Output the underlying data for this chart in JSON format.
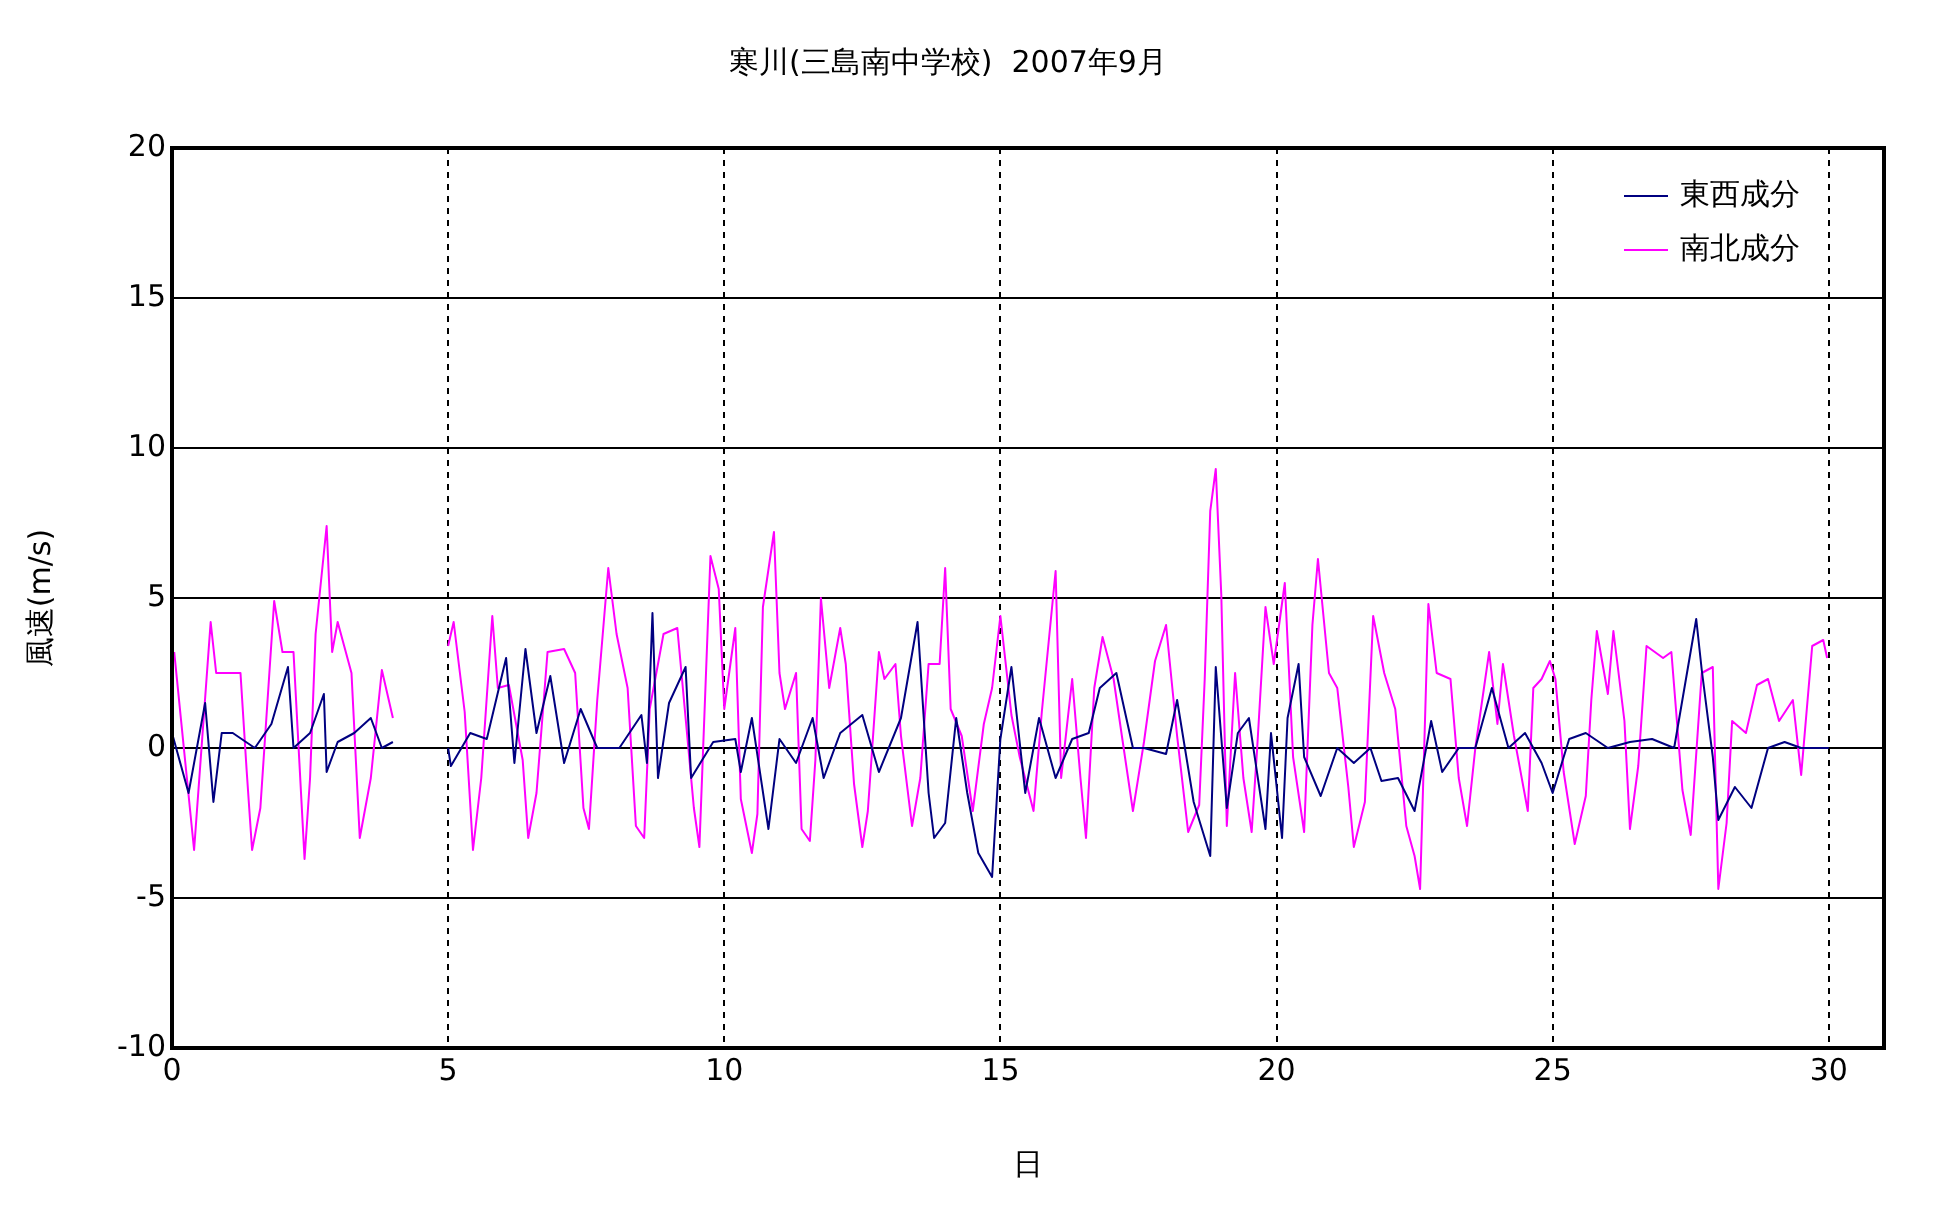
{
  "chart_data": {
    "type": "line",
    "title": "寒川(三島南中学校)  2007年9月",
    "xlabel": "日",
    "ylabel": "風速(m/s)",
    "xlim": [
      0,
      31
    ],
    "xticks": [
      0,
      5,
      10,
      15,
      20,
      25,
      30
    ],
    "ylim": [
      -10,
      20
    ],
    "yticks": [
      -10,
      -5,
      0,
      5,
      10,
      15,
      20
    ],
    "grid": true,
    "legend": "top right",
    "marker": "none",
    "line_style": "solid",
    "series": [
      {
        "name": "東西成分",
        "color": "#000080",
        "x": [
          0,
          0.3,
          0.6,
          0.75,
          0.9,
          1.1,
          1.5,
          1.8,
          2.1,
          2.2,
          2.5,
          2.75,
          2.8,
          3.0,
          3.3,
          3.6,
          3.8,
          4.0,
          4.5,
          5.0,
          5.05,
          5.4,
          5.7,
          6.05,
          6.2,
          6.4,
          6.6,
          6.85,
          7.1,
          7.4,
          7.7,
          8.1,
          8.5,
          8.6,
          8.7,
          8.8,
          9.0,
          9.3,
          9.4,
          9.8,
          10.2,
          10.3,
          10.5,
          10.8,
          11.0,
          11.3,
          11.6,
          11.8,
          12.1,
          12.5,
          12.8,
          13.2,
          13.5,
          13.7,
          13.8,
          14.0,
          14.2,
          14.4,
          14.6,
          14.85,
          15.0,
          15.2,
          15.45,
          15.7,
          16.0,
          16.3,
          16.6,
          16.8,
          17.1,
          17.4,
          17.6,
          18.0,
          18.2,
          18.5,
          18.8,
          18.9,
          19.1,
          19.3,
          19.5,
          19.8,
          19.9,
          20.1,
          20.2,
          20.4,
          20.5,
          20.8,
          21.1,
          21.4,
          21.7,
          21.9,
          22.2,
          22.5,
          22.8,
          23.0,
          23.3,
          23.6,
          23.9,
          24.2,
          24.5,
          24.8,
          25.0,
          25.3,
          25.6,
          26.0,
          26.4,
          26.8,
          27.2,
          27.6,
          27.7,
          27.9,
          28.0,
          28.3,
          28.6,
          28.9,
          29.2,
          29.5,
          30.0
        ],
        "values": [
          0.5,
          -1.5,
          1.5,
          -1.8,
          0.5,
          0.5,
          0,
          0.8,
          2.7,
          0,
          0.5,
          1.8,
          -0.8,
          0.2,
          0.5,
          1,
          0,
          0.2,
          null,
          0,
          -0.6,
          0.5,
          0.3,
          3,
          -0.5,
          3.3,
          0.5,
          2.4,
          -0.5,
          1.3,
          0,
          0,
          1.1,
          -0.5,
          4.5,
          -1,
          1.5,
          2.7,
          -1,
          0.2,
          0.3,
          -0.8,
          1,
          -2.7,
          0.3,
          -0.5,
          1,
          -1,
          0.5,
          1.1,
          -0.8,
          1,
          4.2,
          -1.5,
          -3,
          -2.5,
          1,
          -1.5,
          -3.5,
          -4.3,
          0.3,
          2.7,
          -1.5,
          1,
          -1,
          0.3,
          0.5,
          2,
          2.5,
          0,
          0,
          -0.2,
          1.6,
          -1.8,
          -3.6,
          2.7,
          -2,
          0.5,
          1,
          -2.7,
          0.5,
          -3,
          1,
          2.8,
          -0.3,
          -1.6,
          0,
          -0.5,
          0,
          -1.1,
          -1,
          -2.1,
          0.9,
          -0.8,
          0,
          0,
          2,
          0,
          0.5,
          -0.5,
          -1.5,
          0.3,
          0.5,
          0,
          0.2,
          0.3,
          0,
          4.3,
          2.6,
          -0.3,
          -2.4,
          -1.3,
          -2,
          0,
          0.2,
          0,
          0
        ]
      },
      {
        "name": "南北成分",
        "color": "#ff00ff",
        "x": [
          0.04,
          0.4,
          0.7,
          0.8,
          1.24,
          1.35,
          1.45,
          1.6,
          1.85,
          2.0,
          2.2,
          2.4,
          2.5,
          2.6,
          2.8,
          2.9,
          3.0,
          3.25,
          3.4,
          3.6,
          3.8,
          4.0,
          4.5,
          5.0,
          5.1,
          5.3,
          5.45,
          5.6,
          5.8,
          5.9,
          6.1,
          6.35,
          6.45,
          6.6,
          6.8,
          7.1,
          7.3,
          7.45,
          7.55,
          7.7,
          7.9,
          8.05,
          8.25,
          8.4,
          8.55,
          8.65,
          8.9,
          9.15,
          9.35,
          9.45,
          9.55,
          9.75,
          9.9,
          10.0,
          10.2,
          10.3,
          10.5,
          10.6,
          10.7,
          10.9,
          11.0,
          11.1,
          11.3,
          11.4,
          11.55,
          11.65,
          11.75,
          11.9,
          12.1,
          12.2,
          12.35,
          12.5,
          12.6,
          12.8,
          12.9,
          13.1,
          13.2,
          13.4,
          13.55,
          13.7,
          13.9,
          14.0,
          14.1,
          14.3,
          14.5,
          14.7,
          14.85,
          15.0,
          15.2,
          15.35,
          15.6,
          15.75,
          16.0,
          16.1,
          16.3,
          16.45,
          16.55,
          16.7,
          16.85,
          17.05,
          17.2,
          17.4,
          17.6,
          17.8,
          18.0,
          18.2,
          18.4,
          18.6,
          18.7,
          18.8,
          18.9,
          19.0,
          19.1,
          19.25,
          19.4,
          19.55,
          19.65,
          19.8,
          19.95,
          20.15,
          20.3,
          20.5,
          20.65,
          20.75,
          20.95,
          21.1,
          21.3,
          21.4,
          21.6,
          21.75,
          21.95,
          22.15,
          22.35,
          22.5,
          22.6,
          22.75,
          22.9,
          23.15,
          23.3,
          23.45,
          23.6,
          23.85,
          24.0,
          24.1,
          24.3,
          24.55,
          24.65,
          24.8,
          24.95,
          25.05,
          25.2,
          25.4,
          25.6,
          25.7,
          25.8,
          26.0,
          26.1,
          26.3,
          26.4,
          26.55,
          26.7,
          27.0,
          27.15,
          27.35,
          27.5,
          27.7,
          27.9,
          28.0,
          28.15,
          28.25,
          28.5,
          28.7,
          28.9,
          29.1,
          29.35,
          29.5,
          29.7,
          29.9,
          29.97
        ],
        "values": [
          3.2,
          -3.4,
          4.2,
          2.5,
          2.5,
          -0.7,
          -3.4,
          -2,
          4.9,
          3.2,
          3.2,
          -3.7,
          -1,
          3.8,
          7.4,
          3.2,
          4.2,
          2.5,
          -3,
          -1,
          2.6,
          1,
          null,
          3.4,
          4.2,
          1.2,
          -3.4,
          -1,
          4.4,
          2,
          2.1,
          -0.4,
          -3,
          -1.5,
          3.2,
          3.3,
          2.5,
          -2,
          -2.7,
          1.6,
          6,
          3.8,
          2,
          -2.6,
          -3,
          1.3,
          3.8,
          4,
          0,
          -2,
          -3.3,
          6.4,
          5.3,
          1.3,
          4,
          -1.7,
          -3.5,
          -2.2,
          4.7,
          7.2,
          2.5,
          1.3,
          2.5,
          -2.7,
          -3.1,
          -0.4,
          5,
          2,
          4,
          2.8,
          -1.2,
          -3.3,
          -2.1,
          3.2,
          2.3,
          2.8,
          0.4,
          -2.6,
          -1,
          2.8,
          2.8,
          6,
          1.3,
          0.4,
          -2.1,
          0.8,
          2,
          4.4,
          1.1,
          -0.3,
          -2.1,
          1.2,
          5.9,
          -1,
          2.3,
          -1,
          -3,
          2,
          3.7,
          2.3,
          0.4,
          -2.1,
          0.2,
          2.9,
          4.1,
          0.4,
          -2.8,
          -1.9,
          2.3,
          7.9,
          9.3,
          5.1,
          -2.6,
          2.5,
          -1,
          -2.8,
          0,
          4.7,
          2.8,
          5.5,
          -0.3,
          -2.8,
          4.1,
          6.3,
          2.5,
          2,
          -1.3,
          -3.3,
          -1.8,
          4.4,
          2.5,
          1.3,
          -2.6,
          -3.6,
          -4.7,
          4.8,
          2.5,
          2.3,
          -1,
          -2.6,
          0,
          3.2,
          0.8,
          2.8,
          0.4,
          -2.1,
          2,
          2.3,
          2.9,
          2.3,
          -0.8,
          -3.2,
          -1.6,
          1.6,
          3.9,
          1.8,
          3.9,
          0.9,
          -2.7,
          -0.6,
          3.4,
          3,
          3.2,
          -1.4,
          -2.9,
          2.5,
          2.7,
          -4.7,
          -2.5,
          0.9,
          0.5,
          2.1,
          2.3,
          0.9,
          1.6,
          -0.9,
          3.4,
          3.6,
          3
        ]
      }
    ]
  }
}
